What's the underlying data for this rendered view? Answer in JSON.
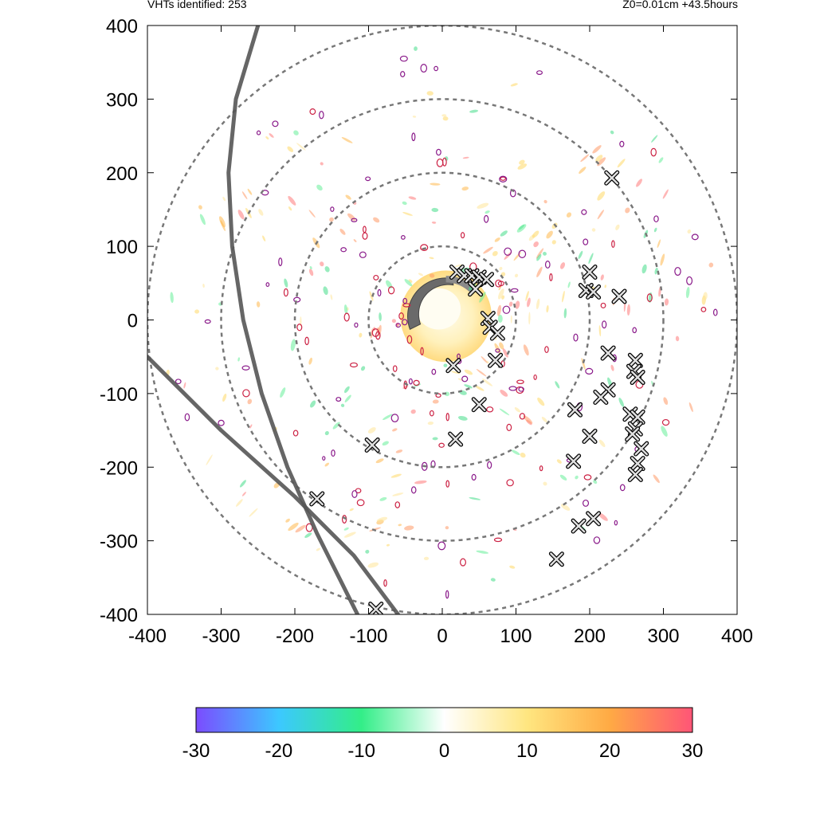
{
  "header": {
    "left_text": "VHTs identified: 253",
    "right_text": "Z0=0.01cm  +43.5hours"
  },
  "chart_data": {
    "type": "scatter",
    "title": "",
    "xlabel": "",
    "ylabel": "",
    "xlim": [
      -400,
      400
    ],
    "ylim": [
      -400,
      400
    ],
    "xticks": [
      -400,
      -300,
      -200,
      -100,
      0,
      100,
      200,
      300,
      400
    ],
    "yticks": [
      -400,
      -300,
      -200,
      -100,
      0,
      100,
      200,
      300,
      400
    ],
    "range_rings_km": [
      100,
      200,
      300,
      400
    ],
    "colorbar": {
      "min": -30,
      "max": 30,
      "ticks": [
        -30,
        -20,
        -10,
        0,
        10,
        20,
        30
      ],
      "colors": [
        "#7b4cff",
        "#3cc8ff",
        "#33ee88",
        "#ffffff",
        "#ffe680",
        "#ffaa44",
        "#ff5577"
      ]
    },
    "vht_markers": [
      [
        20,
        65
      ],
      [
        30,
        60
      ],
      [
        40,
        60
      ],
      [
        50,
        58
      ],
      [
        60,
        55
      ],
      [
        45,
        42
      ],
      [
        62,
        2
      ],
      [
        65,
        -10
      ],
      [
        75,
        -18
      ],
      [
        72,
        -55
      ],
      [
        15,
        -62
      ],
      [
        50,
        -115
      ],
      [
        18,
        -162
      ],
      [
        -95,
        -170
      ],
      [
        -170,
        -243
      ],
      [
        -90,
        -393
      ],
      [
        230,
        193
      ],
      [
        200,
        65
      ],
      [
        195,
        40
      ],
      [
        205,
        38
      ],
      [
        240,
        32
      ],
      [
        225,
        -45
      ],
      [
        262,
        -55
      ],
      [
        260,
        -70
      ],
      [
        265,
        -78
      ],
      [
        225,
        -95
      ],
      [
        215,
        -105
      ],
      [
        180,
        -122
      ],
      [
        200,
        -158
      ],
      [
        255,
        -128
      ],
      [
        265,
        -132
      ],
      [
        262,
        -148
      ],
      [
        258,
        -155
      ],
      [
        270,
        -175
      ],
      [
        178,
        -192
      ],
      [
        265,
        -195
      ],
      [
        262,
        -210
      ],
      [
        205,
        -270
      ],
      [
        185,
        -280
      ],
      [
        155,
        -325
      ]
    ],
    "tracks": [
      [
        [
          -250,
          400
        ],
        [
          -280,
          300
        ],
        [
          -290,
          200
        ],
        [
          -285,
          100
        ],
        [
          -270,
          0
        ],
        [
          -245,
          -100
        ],
        [
          -210,
          -200
        ],
        [
          -170,
          -290
        ],
        [
          -115,
          -400
        ]
      ],
      [
        [
          -400,
          -50
        ],
        [
          -300,
          -150
        ],
        [
          -200,
          -240
        ],
        [
          -120,
          -320
        ],
        [
          -60,
          -400
        ]
      ]
    ]
  }
}
